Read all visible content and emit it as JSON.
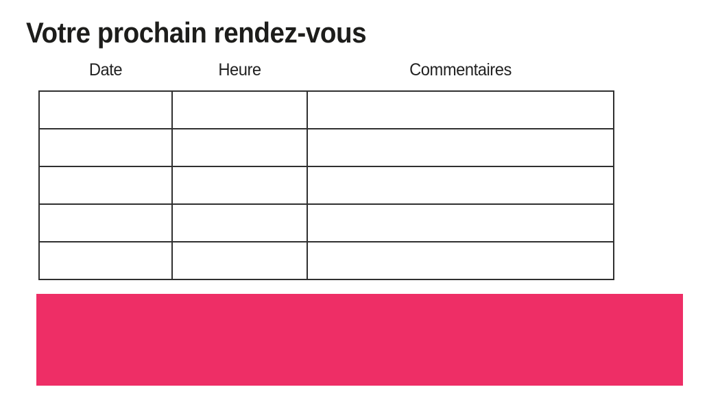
{
  "page": {
    "title": "Votre prochain rendez-vous"
  },
  "table": {
    "columns": [
      {
        "id": "date",
        "label": "Date"
      },
      {
        "id": "heure",
        "label": "Heure"
      },
      {
        "id": "commentaires",
        "label": "Commentaires"
      }
    ],
    "rows": [
      {
        "date": "",
        "heure": "",
        "commentaires": ""
      },
      {
        "date": "",
        "heure": "",
        "commentaires": ""
      },
      {
        "date": "",
        "heure": "",
        "commentaires": ""
      },
      {
        "date": "",
        "heure": "",
        "commentaires": ""
      },
      {
        "date": "",
        "heure": "",
        "commentaires": ""
      }
    ]
  },
  "colors": {
    "accent_pink": "#ee2e66",
    "table_border": "#2f2f2f",
    "title_text": "#1d1d1b",
    "header_text": "#222222"
  }
}
